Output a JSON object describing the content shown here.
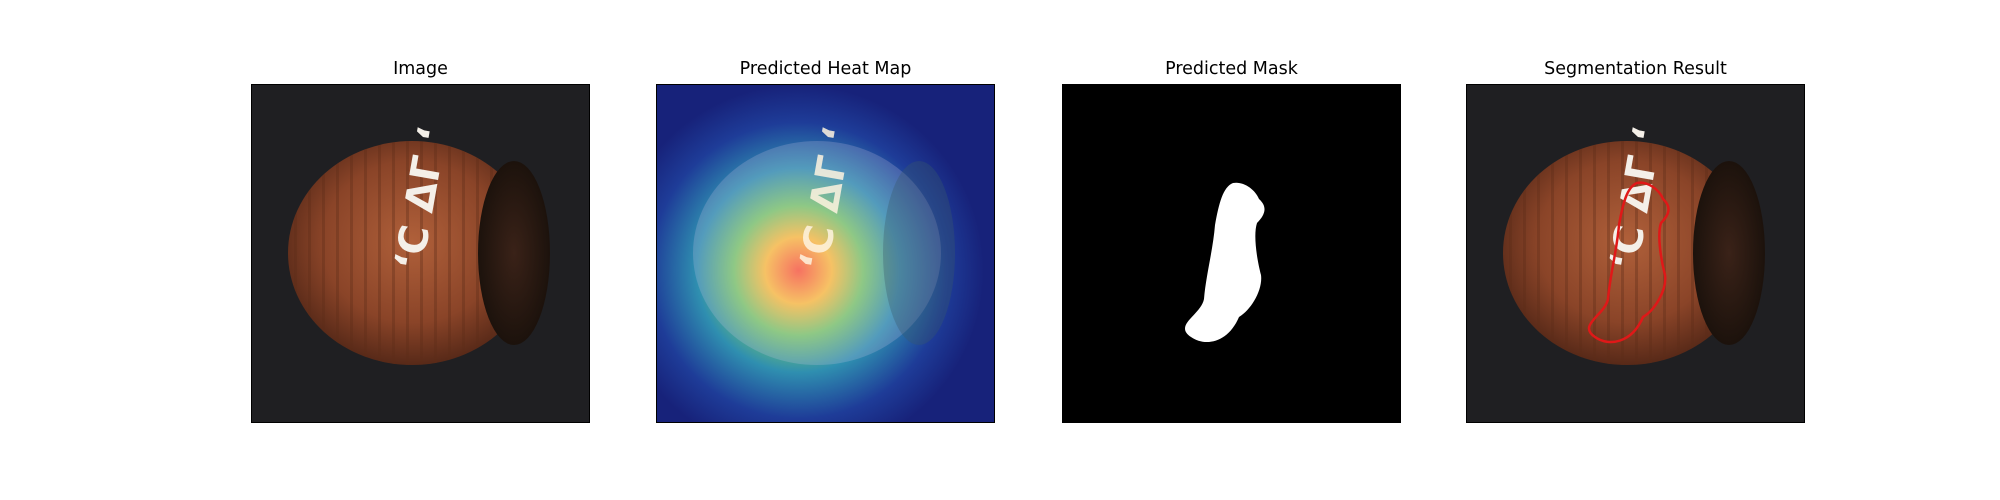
{
  "panels": [
    {
      "title": "Image"
    },
    {
      "title": "Predicted Heat Map"
    },
    {
      "title": "Predicted Mask"
    },
    {
      "title": "Segmentation Result"
    }
  ],
  "defect_marks": "‘C ΔΓ ‘",
  "colors": {
    "background": "#ffffff",
    "photo_background": "#1f1f22",
    "nut_shell": "#8a4a2a",
    "heatmap_cold": "#1a2a8a",
    "heatmap_hot": "#e84030",
    "mask_background": "#000000",
    "mask_foreground": "#ffffff",
    "contour": "#e01818"
  }
}
